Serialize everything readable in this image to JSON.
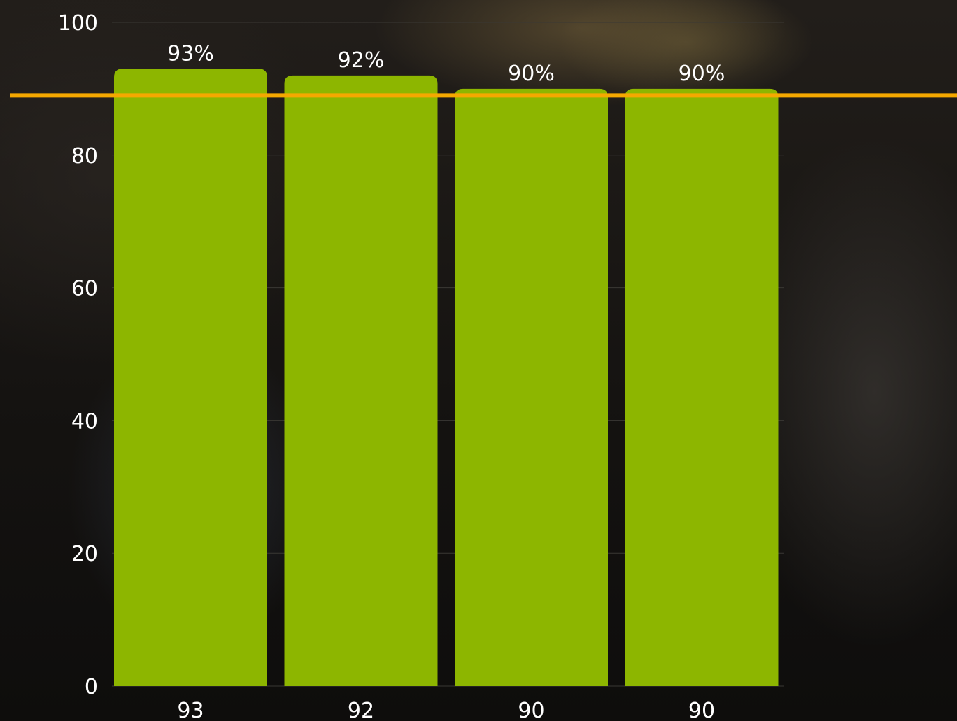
{
  "chart_data": {
    "type": "bar",
    "categories": [
      "93",
      "92",
      "90",
      "90"
    ],
    "values": [
      93,
      92,
      90,
      90
    ],
    "data_labels": [
      "93%",
      "92%",
      "90%",
      "90%"
    ],
    "yticks": [
      "0",
      "20",
      "40",
      "60",
      "80",
      "100"
    ],
    "ylim": [
      0,
      100
    ],
    "reference_line": 89,
    "grid": true,
    "legend": "none",
    "colors": {
      "bar": "#8db600",
      "reference_line": "#f5a800",
      "gridline": "#3a3834",
      "text": "#ffffff"
    }
  }
}
